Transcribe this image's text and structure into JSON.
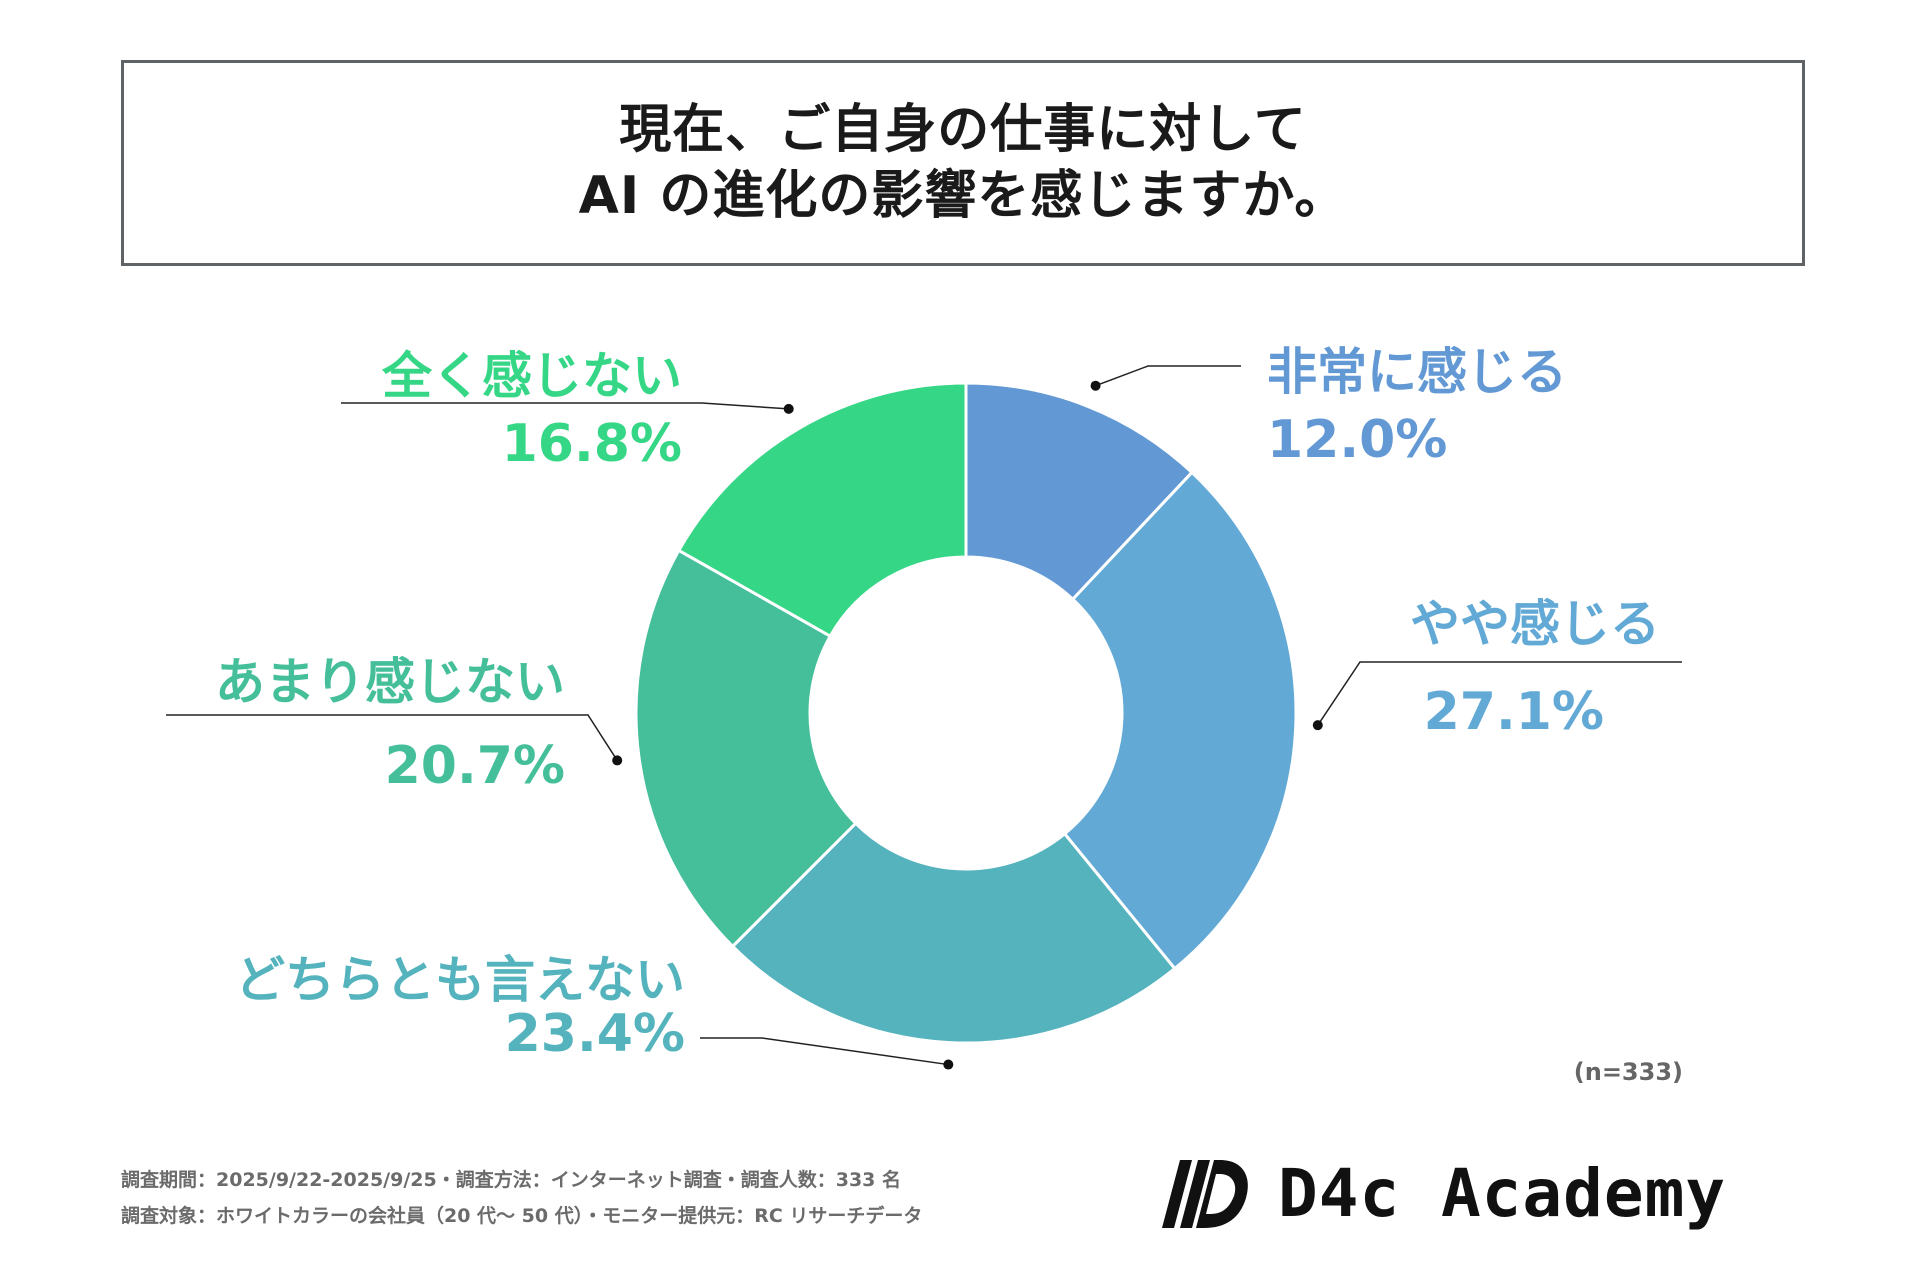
{
  "title": {
    "line1": "現在、ご自身の仕事に対して",
    "line2": "AI の進化の影響を感じますか。"
  },
  "chart_data": {
    "type": "pie",
    "variant": "donut",
    "title": "現在、ご自身の仕事に対して AI の進化の影響を感じますか。",
    "categories": [
      "非常に感じる",
      "やや感じる",
      "どちらとも言えない",
      "あまり感じない",
      "全く感じない"
    ],
    "values": [
      12.0,
      27.1,
      23.4,
      20.7,
      16.8
    ],
    "value_labels": [
      "12.0%",
      "27.1%",
      "23.4%",
      "20.7%",
      "16.8%"
    ],
    "unit": "%",
    "colors": [
      "#6298d4",
      "#62a9d6",
      "#54b3bd",
      "#45bf9a",
      "#35d686"
    ]
  },
  "sample_note": "(n=333)",
  "footer": {
    "line1": "調査期間：2025/9/22-2025/9/25・調査方法：インターネット調査・調査人数：333 名",
    "line2": "調査対象：ホワイトカラーの会社員（20 代～ 50 代）・モニター提供元：RC リサーチデータ"
  },
  "logo": {
    "text": "D4c Academy",
    "mark": "d4c-logo-mark-icon"
  }
}
